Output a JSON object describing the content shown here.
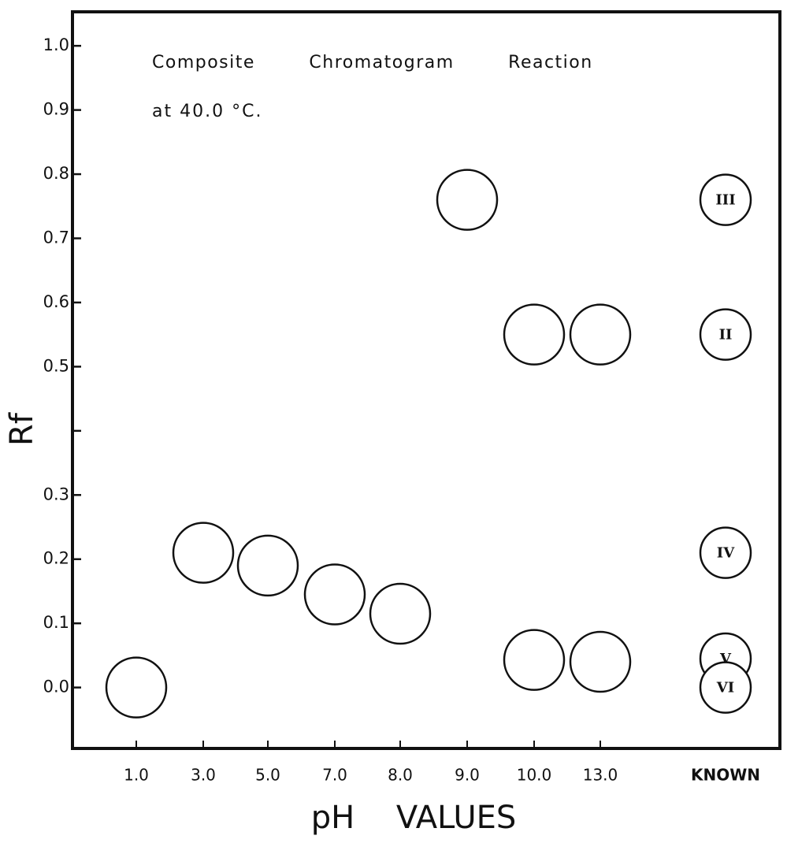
{
  "chart_data": {
    "type": "spot",
    "title": "Composite Chromatogram Reaction",
    "subtitle": "at 40.0 °C.",
    "ylabel": "Rf",
    "xlabel": "pH VALUES",
    "categories": [
      "1.0",
      "3.0",
      "5.0",
      "7.0",
      "8.0",
      "9.0",
      "10.0",
      "13.0",
      "KNOWN"
    ],
    "values": [
      [
        0.0
      ],
      [
        0.21
      ],
      [
        0.19
      ],
      [
        0.145
      ],
      [
        0.115
      ],
      [
        0.76
      ],
      [
        0.55,
        0.043
      ],
      [
        0.55,
        0.04
      ],
      [
        0.76,
        0.55,
        0.21,
        0.045,
        0.0
      ]
    ],
    "known_labels": [
      "III",
      "II",
      "IV",
      "V",
      "VI"
    ],
    "color": "#111111",
    "ylim": [
      -0.095,
      1.053
    ],
    "yticks": [
      {
        "value": 0.0,
        "label": "0.0"
      },
      0.1,
      0.2,
      0.3,
      {
        "value": 0.4,
        "label": null
      },
      0.5,
      0.6,
      0.7,
      0.8,
      0.9,
      {
        "value": 1.0,
        "label": "1.0"
      }
    ]
  }
}
